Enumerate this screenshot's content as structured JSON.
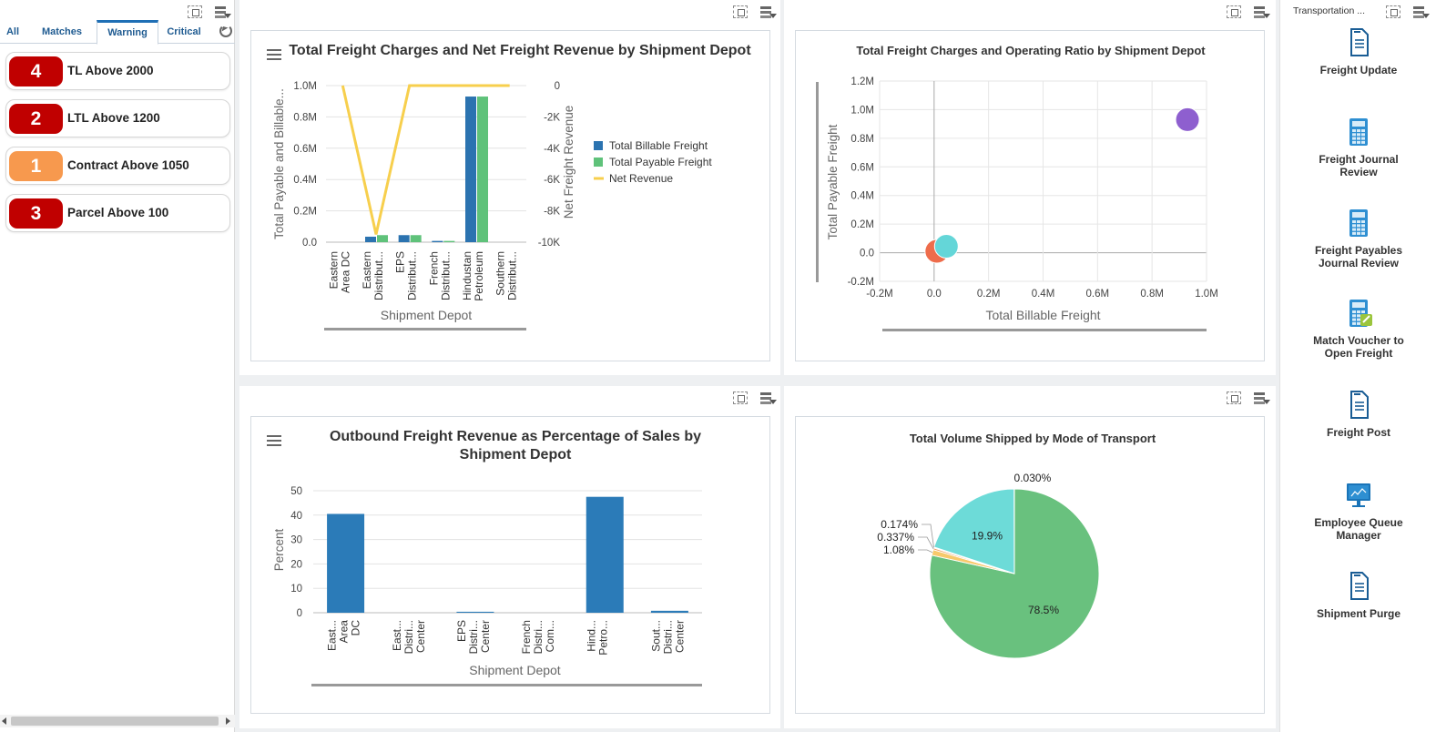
{
  "left_panel": {
    "tabs": [
      "All",
      "Matches",
      "Warning",
      "Critical"
    ],
    "active_tab": "Warning",
    "alerts": [
      {
        "count": "4",
        "label": "TL Above 2000",
        "color": "#c00000"
      },
      {
        "count": "2",
        "label": "LTL Above 1200",
        "color": "#c00000"
      },
      {
        "count": "1",
        "label": "Contract Above 1050",
        "color": "#f7994e"
      },
      {
        "count": "3",
        "label": "Parcel Above 100",
        "color": "#c00000"
      }
    ]
  },
  "right_panel": {
    "title": "Transportation ...",
    "apps": [
      {
        "label": "Freight Update",
        "icon": "document-icon"
      },
      {
        "label": "Freight Journal\nReview",
        "icon": "calculator-icon"
      },
      {
        "label": "Freight Payables\nJournal Review",
        "icon": "calculator-icon"
      },
      {
        "label": "Match Voucher to\nOpen Freight",
        "icon": "calculator-match-icon"
      },
      {
        "label": "Freight Post",
        "icon": "document-icon"
      },
      {
        "label": "Employee Queue\nManager",
        "icon": "monitor-icon"
      },
      {
        "label": "Shipment Purge",
        "icon": "document-icon"
      }
    ]
  },
  "charts": {
    "c1": {
      "title": "Total Freight Charges and Net Freight Revenue by Shipment Depot",
      "chart_data": {
        "type": "bar",
        "title": "Total Freight Charges and Net Freight Revenue by Shipment Depot",
        "xlabel": "Shipment Depot",
        "ylabel": "Total Payable and Billable...",
        "y2label": "Net Freight Revenue",
        "categories": [
          [
            "Eastern",
            "Area DC"
          ],
          [
            "Eastern",
            "Distribut..."
          ],
          [
            "EPS",
            "Distribut..."
          ],
          [
            "French",
            "Distribut..."
          ],
          [
            "Hindustan",
            "Petroleum"
          ],
          [
            "Southern",
            "Distribut..."
          ]
        ],
        "ylim": [
          0,
          1000000
        ],
        "y_ticks": [
          "0.0",
          "0.2M",
          "0.4M",
          "0.6M",
          "0.8M",
          "1.0M"
        ],
        "y2lim": [
          -10000,
          0
        ],
        "y2_ticks": [
          "0",
          "-2K",
          "-4K",
          "-6K",
          "-8K",
          "-10K"
        ],
        "series": [
          {
            "name": "Total Billable Freight",
            "type": "bar",
            "color": "#2b73b0",
            "values": [
              0,
              35000,
              45000,
              8000,
              930000,
              0
            ]
          },
          {
            "name": "Total Payable Freight",
            "type": "bar",
            "color": "#5fc27a",
            "values": [
              0,
              45000,
              45000,
              8000,
              930000,
              0
            ]
          },
          {
            "name": "Net Revenue",
            "type": "line",
            "color": "#f7cf4d",
            "values": [
              0,
              -9500,
              0,
              0,
              0,
              0
            ]
          }
        ],
        "legend": "right",
        "grid": true
      }
    },
    "c2": {
      "title": "Total Freight Charges and Operating Ratio by Shipment Depot",
      "chart_data": {
        "type": "scatter",
        "title": "Total Freight Charges and Operating Ratio by Shipment Depot",
        "xlabel": "Total Billable Freight",
        "ylabel": "Total Payable Freight",
        "xlim": [
          -200000,
          1000000
        ],
        "ylim": [
          -200000,
          1200000
        ],
        "x_ticks": [
          "-0.2M",
          "0.0",
          "0.2M",
          "0.4M",
          "0.6M",
          "0.8M",
          "1.0M"
        ],
        "y_ticks": [
          "-0.2M",
          "0.0",
          "0.2M",
          "0.4M",
          "0.6M",
          "0.8M",
          "1.0M",
          "1.2M"
        ],
        "points": [
          {
            "x": 930000,
            "y": 930000,
            "color": "#8e5fcf"
          },
          {
            "x": 10000,
            "y": 10000,
            "color": "#ee6c4b"
          },
          {
            "x": 45000,
            "y": 45000,
            "color": "#64d6d8"
          }
        ],
        "grid": true
      }
    },
    "c3": {
      "title": "Outbound Freight Revenue as Percentage of Sales by Shipment Depot",
      "chart_data": {
        "type": "bar",
        "title": "Outbound Freight Revenue as Percentage of Sales by Shipment Depot",
        "xlabel": "Shipment Depot",
        "ylabel": "Percent",
        "categories": [
          [
            "East...",
            "Area",
            "DC"
          ],
          [
            "East...",
            "Distri...",
            "Center"
          ],
          [
            "EPS",
            "Distri...",
            "Center"
          ],
          [
            "French",
            "Distri...",
            "Com..."
          ],
          [
            "Hind...",
            "Petro..."
          ],
          [
            "Sout...",
            "Distri...",
            "Center"
          ]
        ],
        "values": [
          40.5,
          0,
          0.4,
          0,
          47.5,
          0.8
        ],
        "ylim": [
          0,
          50
        ],
        "y_ticks": [
          "0",
          "10",
          "20",
          "30",
          "40",
          "50"
        ],
        "color": "#2b7bb8",
        "grid": true
      }
    },
    "c4": {
      "title": "Total Volume Shipped by Mode of Transport",
      "chart_data": {
        "type": "pie",
        "title": "Total Volume Shipped by Mode of Transport",
        "slices": [
          {
            "label": "78.5%",
            "value": 78.5,
            "color": "#69c17e"
          },
          {
            "label": "1.08%",
            "value": 1.08,
            "color": "#f7c96b"
          },
          {
            "label": "0.337%",
            "value": 0.337,
            "color": "#ee9b5b"
          },
          {
            "label": "0.174%",
            "value": 0.174,
            "color": "#e06b6b"
          },
          {
            "label": "19.9%",
            "value": 19.9,
            "color": "#6ddbd8"
          },
          {
            "label": "0.030%",
            "value": 0.03,
            "color": "#8e5fcf"
          }
        ]
      }
    }
  }
}
